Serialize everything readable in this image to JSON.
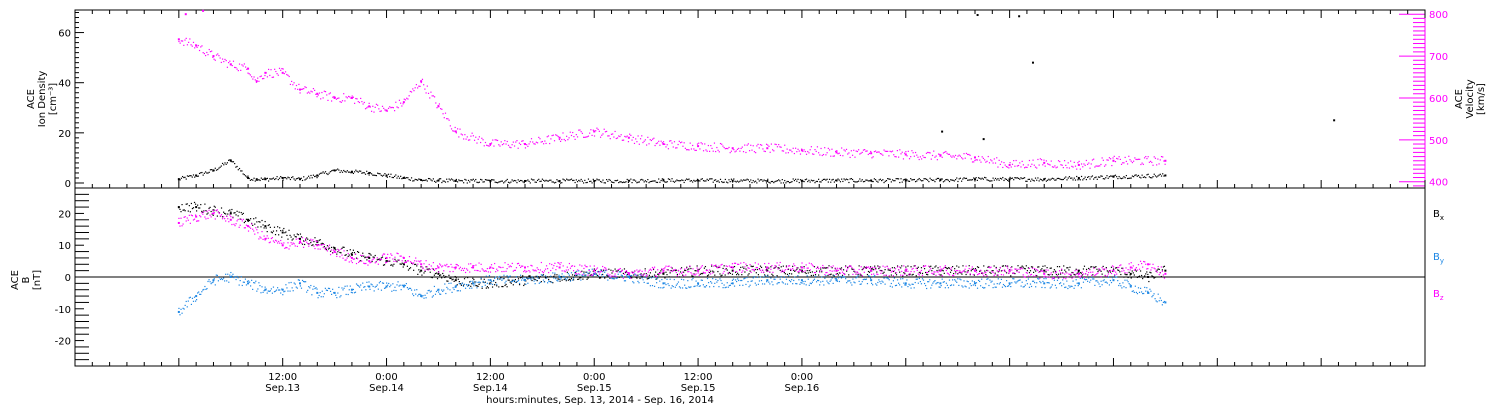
{
  "chart_data": [
    {
      "type": "scatter",
      "panel": "top",
      "ylabel_lines": [
        "ACE",
        "Ion Density",
        "[cm⁻³]"
      ],
      "y2label_lines": [
        "ACE",
        "Velocity",
        "[km/s]"
      ],
      "ylim": [
        -2,
        69
      ],
      "y2lim": [
        385,
        810
      ],
      "yticks": [
        0,
        20,
        40,
        60
      ],
      "y2ticks": [
        400,
        500,
        600,
        700,
        800
      ],
      "colors": {
        "density": "#000000",
        "velocity": "#ff00ff"
      },
      "series": [
        {
          "key": "density",
          "axis": "left",
          "x_hours": [
            0,
            2,
            4,
            6,
            8,
            9,
            10,
            12,
            14,
            16,
            18,
            20,
            22,
            24,
            26,
            28,
            30,
            32,
            36,
            40,
            44,
            48,
            52,
            56,
            60,
            64,
            68,
            72,
            76,
            80,
            84,
            88,
            92,
            96,
            100,
            104,
            108,
            114
          ],
          "values": [
            1.5,
            3,
            5,
            9,
            2,
            1.5,
            1.5,
            2,
            1.5,
            3,
            5,
            4.5,
            4,
            3,
            2,
            1.2,
            1,
            0.8,
            0.8,
            0.8,
            0.8,
            0.8,
            0.9,
            1,
            1,
            0.9,
            0.8,
            0.9,
            1,
            1,
            1,
            1.2,
            1.5,
            1.5,
            1.5,
            2,
            2.5,
            3
          ]
        },
        {
          "key": "velocity",
          "axis": "right",
          "x_hours": [
            0,
            2,
            4,
            6,
            8,
            9,
            10,
            12,
            14,
            16,
            18,
            20,
            22,
            24,
            26,
            28,
            30,
            32,
            36,
            40,
            44,
            48,
            52,
            56,
            60,
            64,
            68,
            72,
            76,
            80,
            84,
            88,
            92,
            96,
            100,
            104,
            108,
            114
          ],
          "values": [
            740,
            725,
            700,
            680,
            670,
            640,
            660,
            660,
            620,
            610,
            600,
            600,
            580,
            570,
            590,
            640,
            580,
            520,
            490,
            490,
            505,
            520,
            505,
            490,
            485,
            480,
            480,
            475,
            470,
            468,
            465,
            462,
            458,
            440,
            445,
            440,
            450,
            450
          ]
        }
      ],
      "isolated_points": [
        {
          "series": "density",
          "x_hours": 92.3,
          "value": 67
        },
        {
          "series": "density",
          "x_hours": 97.1,
          "value": 66.5
        },
        {
          "series": "density",
          "x_hours": 98.7,
          "value": 48
        },
        {
          "series": "density",
          "x_hours": 88.2,
          "value": 20.5
        },
        {
          "series": "density",
          "x_hours": 93,
          "value": 17.5
        },
        {
          "series": "density",
          "x_hours": 133.5,
          "value": 25
        },
        {
          "series": "velocity",
          "x_hours": 0.8,
          "value": 800
        },
        {
          "series": "velocity",
          "x_hours": 2.8,
          "value": 808
        }
      ]
    },
    {
      "type": "scatter",
      "panel": "bottom",
      "ylabel_lines": [
        "ACE",
        "B",
        "[nT]"
      ],
      "ylim": [
        -28,
        28
      ],
      "yticks": [
        -20,
        -10,
        0,
        10,
        20
      ],
      "zero_line": true,
      "legend_position": "right",
      "colors": {
        "Bx": "#000000",
        "By": "#1e88e5",
        "Bz": "#ff00ff"
      },
      "series": [
        {
          "key": "Bx",
          "label_main": "B",
          "label_sub": "x",
          "x_hours": [
            0,
            2,
            4,
            6,
            8,
            10,
            12,
            14,
            16,
            18,
            20,
            22,
            24,
            26,
            28,
            30,
            32,
            34,
            36,
            40,
            44,
            48,
            52,
            56,
            60,
            64,
            68,
            72,
            76,
            80,
            84,
            88,
            92,
            96,
            100,
            104,
            108,
            110,
            112,
            114
          ],
          "values": [
            22,
            22,
            21,
            20,
            18,
            16,
            14,
            12,
            11,
            9,
            7,
            6,
            5,
            4,
            2,
            1,
            -1,
            -2,
            -2,
            -1,
            0,
            1,
            1,
            1,
            2,
            2,
            2,
            2,
            2,
            2,
            2,
            2,
            2,
            2,
            2,
            2,
            2,
            1,
            0,
            2
          ]
        },
        {
          "key": "By",
          "label_main": "B",
          "label_sub": "y",
          "x_hours": [
            0,
            2,
            4,
            6,
            8,
            10,
            12,
            14,
            16,
            18,
            20,
            22,
            24,
            26,
            28,
            30,
            32,
            34,
            36,
            40,
            44,
            48,
            52,
            56,
            60,
            64,
            68,
            72,
            76,
            80,
            84,
            88,
            92,
            96,
            100,
            104,
            108,
            110,
            112,
            114
          ],
          "values": [
            -11,
            -6,
            -1,
            0,
            -2,
            -4,
            -4,
            -2,
            -5,
            -5,
            -4,
            -3,
            -3,
            -3,
            -6,
            -4,
            -3,
            -2,
            -1,
            -1,
            0,
            1,
            0,
            -2,
            -2,
            -2,
            -1,
            -1,
            -1,
            -1,
            -2,
            -2,
            -2,
            -2,
            -2,
            -2,
            -1,
            -3,
            -5,
            -8
          ]
        },
        {
          "key": "Bz",
          "label_main": "B",
          "label_sub": "z",
          "x_hours": [
            0,
            2,
            4,
            6,
            8,
            10,
            12,
            14,
            16,
            18,
            20,
            22,
            24,
            26,
            28,
            30,
            32,
            34,
            36,
            40,
            44,
            48,
            52,
            56,
            60,
            64,
            68,
            72,
            76,
            80,
            84,
            88,
            92,
            96,
            100,
            104,
            108,
            110,
            112,
            114
          ],
          "values": [
            17,
            19,
            20,
            18,
            16,
            12,
            10,
            11,
            10,
            8,
            6,
            5,
            6,
            6,
            4,
            3,
            3,
            3,
            3,
            3,
            3,
            2,
            1,
            2,
            2,
            3,
            3,
            3,
            2,
            2,
            2,
            2,
            2,
            2,
            1,
            1,
            2,
            3,
            4,
            1
          ]
        }
      ]
    }
  ],
  "x_axis": {
    "start_label_hours": 0,
    "end_hours": 144,
    "major_ticks": [
      {
        "hour": 12,
        "line1": "12:00",
        "line2": "Sep.13"
      },
      {
        "hour": 24,
        "line1": "0:00",
        "line2": "Sep.14"
      },
      {
        "hour": 36,
        "line1": "12:00",
        "line2": "Sep.14"
      },
      {
        "hour": 48,
        "line1": "0:00",
        "line2": "Sep.15"
      },
      {
        "hour": 60,
        "line1": "12:00",
        "line2": "Sep.15"
      },
      {
        "hour": 72,
        "line1": "0:00",
        "line2": "Sep.16"
      }
    ],
    "title": "hours:minutes, Sep. 13, 2014 - Sep. 16, 2014"
  }
}
